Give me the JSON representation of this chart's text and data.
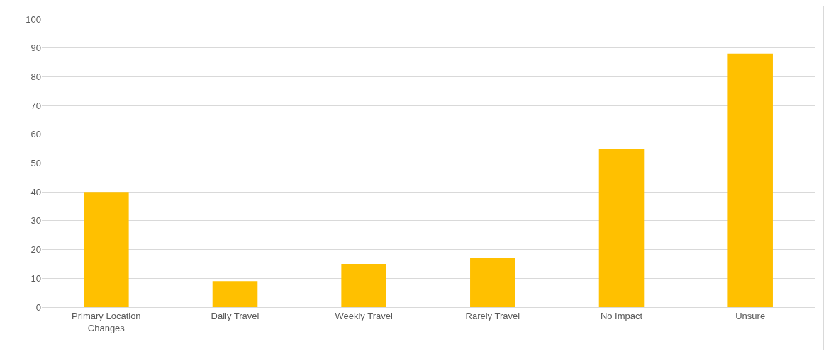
{
  "chart_data": {
    "type": "bar",
    "categories": [
      "Primary Location Changes",
      "Daily Travel",
      "Weekly Travel",
      "Rarely Travel",
      "No Impact",
      "Unsure"
    ],
    "values": [
      40,
      9,
      15,
      17,
      55,
      88
    ],
    "color": "#ffc000",
    "ylim": [
      0,
      100
    ],
    "yticks": [
      0,
      10,
      20,
      30,
      40,
      50,
      60,
      70,
      80,
      90,
      100
    ],
    "grid": "y"
  }
}
